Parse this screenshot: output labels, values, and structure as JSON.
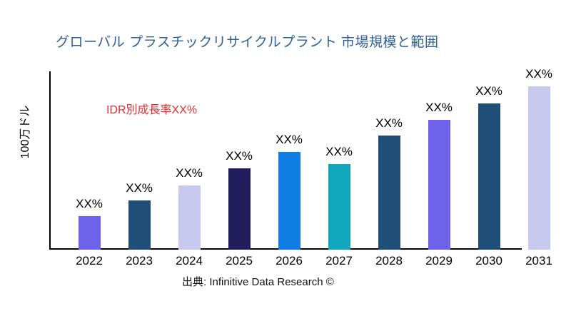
{
  "title": "グローバル プラスチックリサイクルプラント 市場規模と範囲",
  "title_color": "#2E6093",
  "growth_note": {
    "text": "IDR別成長率XX%",
    "color": "#ED2B2B"
  },
  "source": "出典: Infinitive Data Research ©",
  "chart_data": {
    "type": "bar",
    "title": "グローバル プラスチックリサイクルプラント 市場規模と範囲",
    "ylabel": "100万ドル",
    "xlabel": "",
    "categories": [
      "2022",
      "2023",
      "2024",
      "2025",
      "2026",
      "2027",
      "2028",
      "2029",
      "2030",
      "2031"
    ],
    "bar_value_labels": [
      "XX%",
      "XX%",
      "XX%",
      "XX%",
      "XX%",
      "XX%",
      "XX%",
      "XX%",
      "XX%",
      "XX%"
    ],
    "relative_heights": [
      47,
      69,
      90,
      114,
      137,
      120,
      160,
      182,
      205,
      229
    ],
    "bar_colors": [
      "#6E62EA",
      "#1F4E79",
      "#C7C9EF",
      "#221D5C",
      "#0F7DE3",
      "#10A7BD",
      "#1F4E79",
      "#6E62EA",
      "#1F4E79",
      "#C7C9EF"
    ],
    "annotation": "IDR別成長率XX%",
    "grid": false,
    "legend": false,
    "ylim": [
      0,
      250
    ]
  }
}
